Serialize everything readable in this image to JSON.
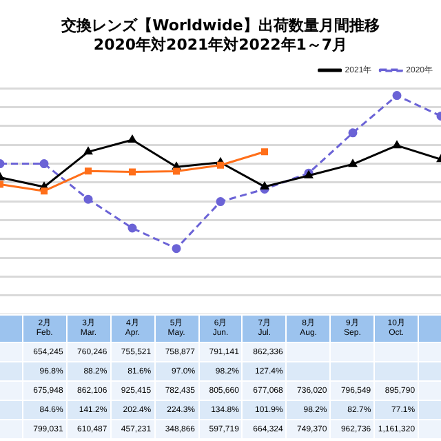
{
  "chart_data": {
    "type": "line",
    "title": "交換レンズ【Worldwide】出荷数量月間推移",
    "subtitle": "2020年対2021年対2022年1～7月",
    "categories": [
      null,
      "2月\nFeb.",
      "3月\nMar.",
      "4月\nApr.",
      "5月\nMay.",
      "6月\nJun.",
      "7月\nJul.",
      "8月\nAug.",
      "9月\nSep.",
      "10月\nOct.",
      null
    ],
    "series": [
      {
        "color": "#ff6f1a",
        "marker": "square",
        "line_style": "solid",
        "values": [
          690000,
          654245,
          760246,
          755521,
          758877,
          791141,
          862336,
          null,
          null,
          null,
          null
        ],
        "value_labels": [
          null,
          "654,245",
          "760,246",
          "755,521",
          "758,877",
          "791,141",
          "862,336",
          null,
          null,
          null,
          null
        ]
      },
      {
        "name": "2021年",
        "color": "#000000",
        "marker": "triangle",
        "line_style": "solid",
        "values": [
          726000,
          675948,
          862106,
          925415,
          782435,
          805660,
          677068,
          736020,
          796549,
          895790,
          822000
        ],
        "value_labels": [
          null,
          "675,948",
          "862,106",
          "925,415",
          "782,435",
          "805,660",
          "677,068",
          "736,020",
          "796,549",
          "895,790",
          null
        ]
      },
      {
        "name": "2020年",
        "color": "#6b63d6",
        "marker": "circle",
        "line_style": "dashed",
        "values": [
          799000,
          799031,
          610487,
          457231,
          348866,
          597719,
          664324,
          749370,
          962736,
          1161320,
          1052000
        ],
        "value_labels": [
          null,
          "799,031",
          "610,487",
          "457,231",
          "348,866",
          "597,719",
          "664,324",
          "749,370",
          "962,736",
          "1,161,320",
          null
        ]
      }
    ],
    "annotations": [
      "96.8%",
      "88.2%",
      "81.6%",
      "97.0%",
      "98.2%",
      "127.4%",
      "84.6%",
      "141.2%",
      "202.4%",
      "224.3%",
      "134.8%",
      "101.9%",
      "98.2%",
      "82.7%",
      "77.1%"
    ],
    "tick_labels": false,
    "grid": "y",
    "legend": "top right"
  }
}
